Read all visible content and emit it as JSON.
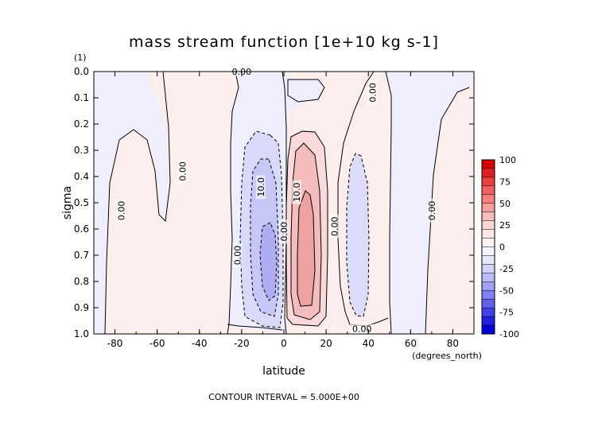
{
  "chart_data": {
    "type": "contour",
    "title": "mass stream function [1e+10 kg s-1]",
    "xlabel": "latitude",
    "x_units": "(degrees_north)",
    "ylabel": "sigma",
    "y_units": "(1)",
    "xlim": [
      -90,
      90
    ],
    "ylim": [
      0.0,
      1.0
    ],
    "y_inverted": true,
    "x_ticks": [
      -80,
      -60,
      -40,
      -20,
      0,
      20,
      40,
      60,
      80
    ],
    "x_tick_labels": [
      "-80",
      "-60",
      "-40",
      "-20",
      "0",
      "20",
      "40",
      "60",
      "80"
    ],
    "y_ticks": [
      0.0,
      0.1,
      0.2,
      0.3,
      0.4,
      0.5,
      0.6,
      0.7,
      0.8,
      0.9,
      1.0
    ],
    "y_tick_labels": [
      "0.0",
      "0.1",
      "0.2",
      "0.3",
      "0.4",
      "0.5",
      "0.6",
      "0.7",
      "0.8",
      "0.9",
      "1.0"
    ],
    "contour_interval_text": "CONTOUR INTERVAL = 5.000E+00",
    "contour_labels": [
      {
        "text": "0.00",
        "lat": -20,
        "sigma": 0.0,
        "rot": 0
      },
      {
        "text": "0.00",
        "lat": 42,
        "sigma": 0.08,
        "rot": -90
      },
      {
        "text": "0.00",
        "lat": -48,
        "sigma": 0.38,
        "rot": -90
      },
      {
        "text": "0.00",
        "lat": -77,
        "sigma": 0.53,
        "rot": -90
      },
      {
        "text": "10.0",
        "lat": -11,
        "sigma": 0.44,
        "rot": -90
      },
      {
        "text": "10.0",
        "lat": 6,
        "sigma": 0.46,
        "rot": -90
      },
      {
        "text": "0.00",
        "lat": 0,
        "sigma": 0.61,
        "rot": -90
      },
      {
        "text": "0.00",
        "lat": 24,
        "sigma": 0.59,
        "rot": -90
      },
      {
        "text": "0.00",
        "lat": -22,
        "sigma": 0.7,
        "rot": -90
      },
      {
        "text": "0.00",
        "lat": 70,
        "sigma": 0.53,
        "rot": -90
      },
      {
        "text": "0.00",
        "lat": 37,
        "sigma": 0.98,
        "rot": 0
      }
    ],
    "colorbar": {
      "ticks": [
        100,
        75,
        50,
        25,
        0,
        -25,
        -50,
        -75,
        -100
      ],
      "tick_labels": [
        "100",
        "75",
        "50",
        "25",
        "0",
        "-25",
        "-50",
        "-75",
        "-100"
      ],
      "colors_top_to_bottom": [
        "#d40000",
        "#e02020",
        "#e94040",
        "#f06060",
        "#f48080",
        "#f7a0a0",
        "#f9bcbc",
        "#fbd4d4",
        "#fde6e6",
        "#fef3f3",
        "#f4f4fe",
        "#e6e6fd",
        "#d4d4fb",
        "#bcbcf9",
        "#a0a0f7",
        "#8080f4",
        "#6060f0",
        "#4040e9",
        "#2020e0",
        "#0000d4"
      ]
    },
    "fill_colors": {
      "positive_weak": "#fdeeee",
      "negative_weak": "#eeeefd",
      "pos_10": "#f7c6c6",
      "pos_15": "#f2a5a5",
      "neg_10": "#cfcff8",
      "neg_15": "#b7b7f4"
    }
  }
}
